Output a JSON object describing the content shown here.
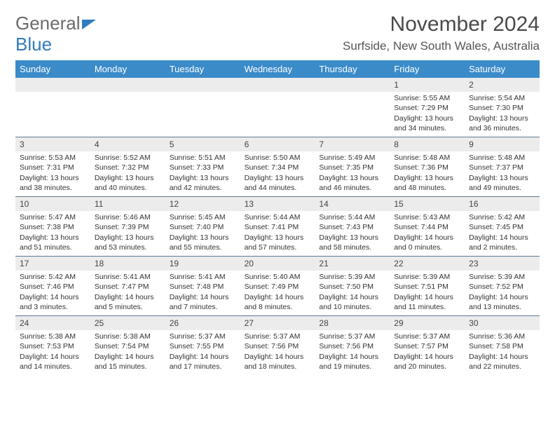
{
  "logo": {
    "text1": "General",
    "text2": "Blue"
  },
  "header": {
    "month_title": "November 2024",
    "location": "Surfside, New South Wales, Australia"
  },
  "colors": {
    "header_bg": "#3b8bc9",
    "header_text": "#ffffff",
    "daynum_bg": "#ececec",
    "row_border": "#5a7a95",
    "logo_blue": "#2f7bbf",
    "text": "#333333"
  },
  "weekdays": [
    "Sunday",
    "Monday",
    "Tuesday",
    "Wednesday",
    "Thursday",
    "Friday",
    "Saturday"
  ],
  "weeks": [
    [
      {
        "blank": true
      },
      {
        "blank": true
      },
      {
        "blank": true
      },
      {
        "blank": true
      },
      {
        "blank": true
      },
      {
        "day": "1",
        "sunrise": "Sunrise: 5:55 AM",
        "sunset": "Sunset: 7:29 PM",
        "daylight": "Daylight: 13 hours and 34 minutes."
      },
      {
        "day": "2",
        "sunrise": "Sunrise: 5:54 AM",
        "sunset": "Sunset: 7:30 PM",
        "daylight": "Daylight: 13 hours and 36 minutes."
      }
    ],
    [
      {
        "day": "3",
        "sunrise": "Sunrise: 5:53 AM",
        "sunset": "Sunset: 7:31 PM",
        "daylight": "Daylight: 13 hours and 38 minutes."
      },
      {
        "day": "4",
        "sunrise": "Sunrise: 5:52 AM",
        "sunset": "Sunset: 7:32 PM",
        "daylight": "Daylight: 13 hours and 40 minutes."
      },
      {
        "day": "5",
        "sunrise": "Sunrise: 5:51 AM",
        "sunset": "Sunset: 7:33 PM",
        "daylight": "Daylight: 13 hours and 42 minutes."
      },
      {
        "day": "6",
        "sunrise": "Sunrise: 5:50 AM",
        "sunset": "Sunset: 7:34 PM",
        "daylight": "Daylight: 13 hours and 44 minutes."
      },
      {
        "day": "7",
        "sunrise": "Sunrise: 5:49 AM",
        "sunset": "Sunset: 7:35 PM",
        "daylight": "Daylight: 13 hours and 46 minutes."
      },
      {
        "day": "8",
        "sunrise": "Sunrise: 5:48 AM",
        "sunset": "Sunset: 7:36 PM",
        "daylight": "Daylight: 13 hours and 48 minutes."
      },
      {
        "day": "9",
        "sunrise": "Sunrise: 5:48 AM",
        "sunset": "Sunset: 7:37 PM",
        "daylight": "Daylight: 13 hours and 49 minutes."
      }
    ],
    [
      {
        "day": "10",
        "sunrise": "Sunrise: 5:47 AM",
        "sunset": "Sunset: 7:38 PM",
        "daylight": "Daylight: 13 hours and 51 minutes."
      },
      {
        "day": "11",
        "sunrise": "Sunrise: 5:46 AM",
        "sunset": "Sunset: 7:39 PM",
        "daylight": "Daylight: 13 hours and 53 minutes."
      },
      {
        "day": "12",
        "sunrise": "Sunrise: 5:45 AM",
        "sunset": "Sunset: 7:40 PM",
        "daylight": "Daylight: 13 hours and 55 minutes."
      },
      {
        "day": "13",
        "sunrise": "Sunrise: 5:44 AM",
        "sunset": "Sunset: 7:41 PM",
        "daylight": "Daylight: 13 hours and 57 minutes."
      },
      {
        "day": "14",
        "sunrise": "Sunrise: 5:44 AM",
        "sunset": "Sunset: 7:43 PM",
        "daylight": "Daylight: 13 hours and 58 minutes."
      },
      {
        "day": "15",
        "sunrise": "Sunrise: 5:43 AM",
        "sunset": "Sunset: 7:44 PM",
        "daylight": "Daylight: 14 hours and 0 minutes."
      },
      {
        "day": "16",
        "sunrise": "Sunrise: 5:42 AM",
        "sunset": "Sunset: 7:45 PM",
        "daylight": "Daylight: 14 hours and 2 minutes."
      }
    ],
    [
      {
        "day": "17",
        "sunrise": "Sunrise: 5:42 AM",
        "sunset": "Sunset: 7:46 PM",
        "daylight": "Daylight: 14 hours and 3 minutes."
      },
      {
        "day": "18",
        "sunrise": "Sunrise: 5:41 AM",
        "sunset": "Sunset: 7:47 PM",
        "daylight": "Daylight: 14 hours and 5 minutes."
      },
      {
        "day": "19",
        "sunrise": "Sunrise: 5:41 AM",
        "sunset": "Sunset: 7:48 PM",
        "daylight": "Daylight: 14 hours and 7 minutes."
      },
      {
        "day": "20",
        "sunrise": "Sunrise: 5:40 AM",
        "sunset": "Sunset: 7:49 PM",
        "daylight": "Daylight: 14 hours and 8 minutes."
      },
      {
        "day": "21",
        "sunrise": "Sunrise: 5:39 AM",
        "sunset": "Sunset: 7:50 PM",
        "daylight": "Daylight: 14 hours and 10 minutes."
      },
      {
        "day": "22",
        "sunrise": "Sunrise: 5:39 AM",
        "sunset": "Sunset: 7:51 PM",
        "daylight": "Daylight: 14 hours and 11 minutes."
      },
      {
        "day": "23",
        "sunrise": "Sunrise: 5:39 AM",
        "sunset": "Sunset: 7:52 PM",
        "daylight": "Daylight: 14 hours and 13 minutes."
      }
    ],
    [
      {
        "day": "24",
        "sunrise": "Sunrise: 5:38 AM",
        "sunset": "Sunset: 7:53 PM",
        "daylight": "Daylight: 14 hours and 14 minutes."
      },
      {
        "day": "25",
        "sunrise": "Sunrise: 5:38 AM",
        "sunset": "Sunset: 7:54 PM",
        "daylight": "Daylight: 14 hours and 15 minutes."
      },
      {
        "day": "26",
        "sunrise": "Sunrise: 5:37 AM",
        "sunset": "Sunset: 7:55 PM",
        "daylight": "Daylight: 14 hours and 17 minutes."
      },
      {
        "day": "27",
        "sunrise": "Sunrise: 5:37 AM",
        "sunset": "Sunset: 7:56 PM",
        "daylight": "Daylight: 14 hours and 18 minutes."
      },
      {
        "day": "28",
        "sunrise": "Sunrise: 5:37 AM",
        "sunset": "Sunset: 7:56 PM",
        "daylight": "Daylight: 14 hours and 19 minutes."
      },
      {
        "day": "29",
        "sunrise": "Sunrise: 5:37 AM",
        "sunset": "Sunset: 7:57 PM",
        "daylight": "Daylight: 14 hours and 20 minutes."
      },
      {
        "day": "30",
        "sunrise": "Sunrise: 5:36 AM",
        "sunset": "Sunset: 7:58 PM",
        "daylight": "Daylight: 14 hours and 22 minutes."
      }
    ]
  ]
}
